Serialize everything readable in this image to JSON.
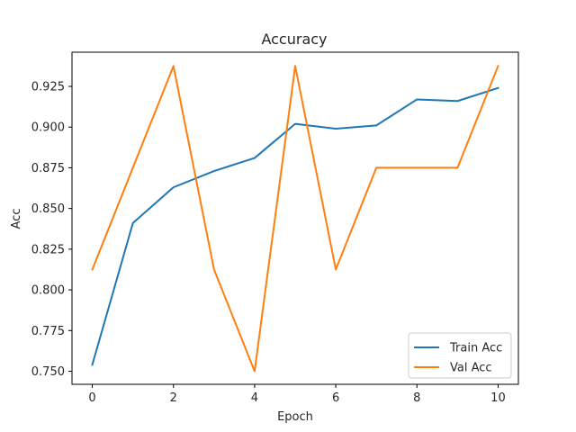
{
  "chart_data": {
    "type": "line",
    "title": "Accuracy",
    "xlabel": "Epoch",
    "ylabel": "Acc",
    "x": [
      0,
      1,
      2,
      3,
      4,
      5,
      6,
      7,
      8,
      9,
      10
    ],
    "xlim": [
      -0.5,
      10.5
    ],
    "ylim": [
      0.742,
      0.946
    ],
    "x_ticks": [
      0,
      2,
      4,
      6,
      8,
      10
    ],
    "y_ticks": [
      0.75,
      0.775,
      0.8,
      0.825,
      0.85,
      0.875,
      0.9,
      0.925
    ],
    "x_tick_labels": [
      "0",
      "2",
      "4",
      "6",
      "8",
      "10"
    ],
    "y_tick_labels": [
      "0.750",
      "0.775",
      "0.800",
      "0.825",
      "0.850",
      "0.875",
      "0.900",
      "0.925"
    ],
    "grid": false,
    "legend_position": "bottom-right",
    "series": [
      {
        "name": "Train Acc",
        "color": "#1f77b4",
        "values": [
          0.754,
          0.841,
          0.863,
          0.873,
          0.881,
          0.902,
          0.899,
          0.901,
          0.917,
          0.916,
          0.924
        ]
      },
      {
        "name": "Val Acc",
        "color": "#ff7f0e",
        "values": [
          0.8125,
          0.875,
          0.9375,
          0.8125,
          0.75,
          0.9375,
          0.8125,
          0.875,
          0.875,
          0.875,
          0.9375
        ]
      }
    ]
  }
}
